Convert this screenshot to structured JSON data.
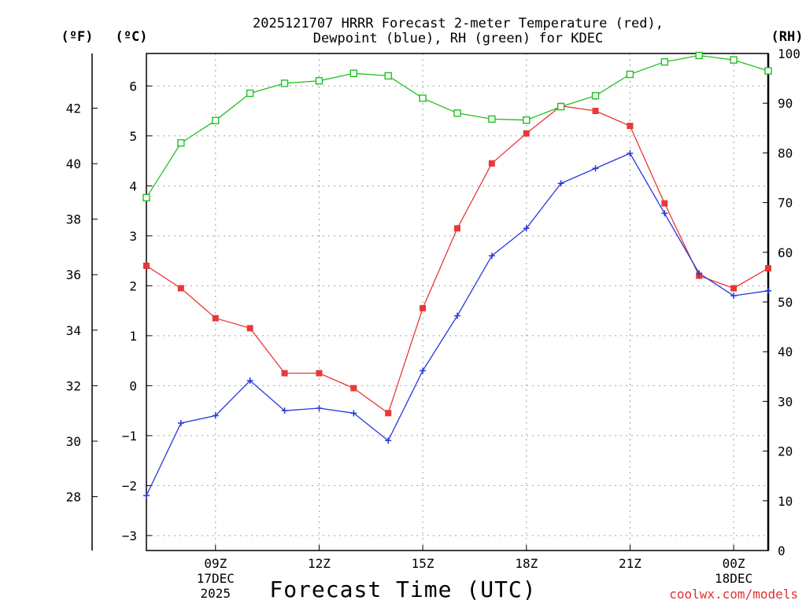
{
  "title": {
    "line1": "2025121707 HRRR Forecast 2-meter Temperature (red),",
    "line2": "Dewpoint (blue), RH (green) for KDEC"
  },
  "units": {
    "fahrenheit": "(ºF)",
    "celsius": "(ºC)",
    "rh": "(RH)"
  },
  "x_title": "Forecast Time (UTC)",
  "credit": "coolwx.com/models",
  "credit_color": "#e03030",
  "colors": {
    "temperature": "#e83838",
    "dewpoint": "#2838d8",
    "rh": "#20c020"
  },
  "chart_data": {
    "type": "line",
    "title": "2025121707 HRRR Forecast 2-meter Temperature (red), Dewpoint (blue), RH (green) for KDEC",
    "xlabel": "Forecast Time (UTC)",
    "x": [
      7,
      8,
      9,
      10,
      11,
      12,
      13,
      14,
      15,
      16,
      17,
      18,
      19,
      20,
      21,
      22,
      23,
      24,
      25
    ],
    "xlim": [
      7,
      25
    ],
    "series": [
      {
        "name": "Temperature",
        "axis": "celsius",
        "marker": "filled-square",
        "values": [
          2.4,
          1.95,
          1.35,
          1.15,
          0.25,
          0.25,
          -0.05,
          -0.55,
          1.55,
          3.15,
          4.45,
          5.05,
          5.6,
          5.5,
          5.2,
          3.65,
          2.2,
          1.95,
          2.35
        ]
      },
      {
        "name": "Dewpoint",
        "axis": "celsius",
        "marker": "plus",
        "values": [
          -2.2,
          -0.75,
          -0.6,
          0.1,
          -0.5,
          -0.45,
          -0.55,
          -1.1,
          0.3,
          1.4,
          2.6,
          3.15,
          4.05,
          4.35,
          4.65,
          3.45,
          2.25,
          1.8,
          1.9
        ]
      },
      {
        "name": "RH",
        "axis": "rh",
        "marker": "open-square",
        "values": [
          71,
          82,
          86.5,
          92,
          94,
          94.5,
          96,
          95.5,
          91,
          88,
          86.8,
          86.6,
          89.3,
          91.5,
          95.8,
          98.3,
          99.6,
          98.7,
          96.5
        ]
      }
    ],
    "x_ticks": [
      {
        "x": 9,
        "label": "09Z",
        "sub1": "17DEC",
        "sub2": "2025"
      },
      {
        "x": 12,
        "label": "12Z",
        "sub1": "",
        "sub2": ""
      },
      {
        "x": 15,
        "label": "15Z",
        "sub1": "",
        "sub2": ""
      },
      {
        "x": 18,
        "label": "18Z",
        "sub1": "",
        "sub2": ""
      },
      {
        "x": 21,
        "label": "21Z",
        "sub1": "",
        "sub2": ""
      },
      {
        "x": 24,
        "label": "00Z",
        "sub1": "18DEC",
        "sub2": ""
      }
    ],
    "celsius_axis": {
      "ticks": [
        -3,
        -2,
        -1,
        0,
        1,
        2,
        3,
        4,
        5,
        6
      ],
      "ylim": [
        -3.3,
        6.65
      ]
    },
    "fahrenheit_axis": {
      "ticks": [
        28,
        30,
        32,
        34,
        36,
        38,
        40,
        42
      ]
    },
    "rh_axis": {
      "ticks": [
        0,
        10,
        20,
        30,
        40,
        50,
        60,
        70,
        80,
        90,
        100
      ],
      "ylim": [
        0,
        100
      ]
    },
    "grid": true
  }
}
